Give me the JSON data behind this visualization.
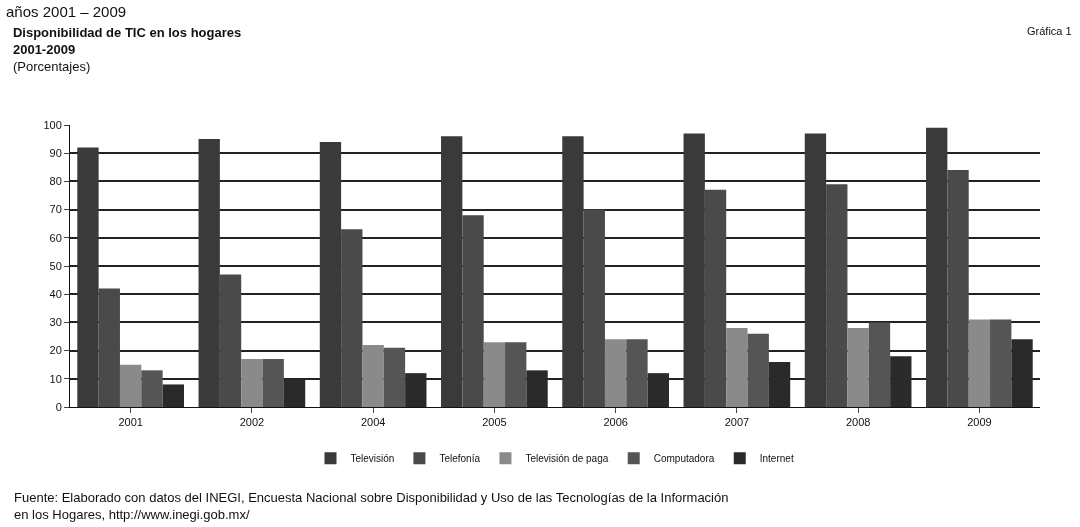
{
  "chart_data": {
    "type": "bar",
    "title": "Disponibilidad de TIC en los hogares\n2001-2009",
    "subtitle": "(Porcentajes)",
    "categories": [
      "2001",
      "2002",
      "2004",
      "2005",
      "2006",
      "2007",
      "2008",
      "2009"
    ],
    "series": [
      {
        "name": "Televisión",
        "color": "#3a3a3a",
        "values": [
          92,
          95,
          94,
          96,
          96,
          97,
          97,
          99
        ]
      },
      {
        "name": "Telefonía",
        "color": "#4a4a4a",
        "values": [
          42,
          47,
          63,
          68,
          70,
          77,
          79,
          84
        ]
      },
      {
        "name": "Televisión de paga",
        "color": "#8a8a8a",
        "values": [
          15,
          17,
          22,
          23,
          24,
          28,
          28,
          31
        ]
      },
      {
        "name": "Computadora",
        "color": "#555555",
        "values": [
          13,
          17,
          21,
          23,
          24,
          26,
          30,
          31
        ]
      },
      {
        "name": "Internet",
        "color": "#2a2a2a",
        "values": [
          8,
          10,
          12,
          13,
          12,
          16,
          18,
          24
        ]
      }
    ],
    "ylim": [
      0,
      100
    ],
    "yticks": [
      0,
      10,
      20,
      30,
      40,
      50,
      60,
      70,
      80,
      90,
      100
    ],
    "grid": "y",
    "legend": "bottom",
    "annotations": [
      "años 2001 – 2009",
      "Gráfica 1",
      "Fuente: Elaborado con datos del INEGI, Encuesta Nacional sobre Disponibilidad y Uso de las Tecnologías de la Información\nen los Hogares, http://www.inegi.gob.mx/"
    ]
  }
}
